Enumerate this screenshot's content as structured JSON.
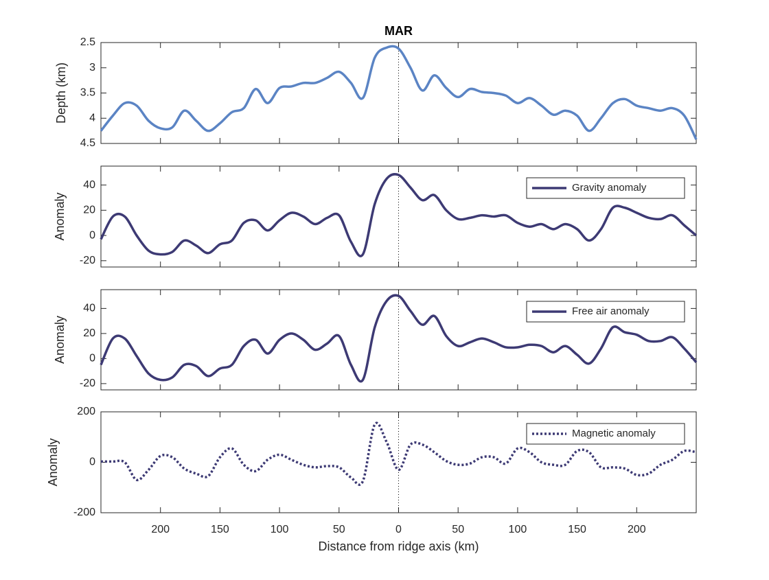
{
  "chart_data": [
    {
      "type": "line",
      "title": "MAR",
      "ylabel": "Depth (km)",
      "y_reversed": true,
      "vline": 0,
      "xlim": [
        -250,
        250
      ],
      "ylim": [
        2.5,
        4.5
      ],
      "yticks": [
        2.5,
        3,
        3.5,
        4,
        4.5
      ],
      "x": [
        -250,
        -240,
        -230,
        -220,
        -210,
        -200,
        -190,
        -180,
        -170,
        -160,
        -150,
        -140,
        -130,
        -120,
        -110,
        -100,
        -90,
        -80,
        -70,
        -60,
        -50,
        -40,
        -30,
        -20,
        -10,
        0,
        10,
        20,
        30,
        40,
        50,
        60,
        70,
        80,
        90,
        100,
        110,
        120,
        130,
        140,
        150,
        160,
        170,
        180,
        190,
        200,
        210,
        220,
        230,
        240,
        250
      ],
      "series": [
        {
          "name": "Depth",
          "color": "#5b84c4",
          "style": "solid",
          "values": [
            4.25,
            3.95,
            3.7,
            3.75,
            4.05,
            4.2,
            4.18,
            3.85,
            4.05,
            4.25,
            4.1,
            3.88,
            3.8,
            3.42,
            3.7,
            3.4,
            3.37,
            3.3,
            3.3,
            3.2,
            3.08,
            3.3,
            3.6,
            2.8,
            2.6,
            2.62,
            3.0,
            3.45,
            3.15,
            3.4,
            3.58,
            3.42,
            3.48,
            3.5,
            3.55,
            3.7,
            3.6,
            3.75,
            3.93,
            3.85,
            3.95,
            4.25,
            4.0,
            3.7,
            3.62,
            3.75,
            3.8,
            3.85,
            3.8,
            3.95,
            4.42
          ]
        }
      ]
    },
    {
      "type": "line",
      "ylabel": "Anomaly",
      "legend": "northeast",
      "vline": 0,
      "xlim": [
        -250,
        250
      ],
      "ylim": [
        -25,
        55
      ],
      "yticks": [
        -20,
        0,
        20,
        40
      ],
      "x": [
        -250,
        -240,
        -230,
        -220,
        -210,
        -200,
        -190,
        -180,
        -170,
        -160,
        -150,
        -140,
        -130,
        -120,
        -110,
        -100,
        -90,
        -80,
        -70,
        -60,
        -50,
        -40,
        -30,
        -20,
        -10,
        0,
        10,
        20,
        30,
        40,
        50,
        60,
        70,
        80,
        90,
        100,
        110,
        120,
        130,
        140,
        150,
        160,
        170,
        180,
        190,
        200,
        210,
        220,
        230,
        240,
        250
      ],
      "series": [
        {
          "name": "Gravity anomaly",
          "color": "#3d3a74",
          "style": "solid",
          "values": [
            -3,
            15,
            15,
            0,
            -12,
            -15,
            -13,
            -4,
            -8,
            -14,
            -7,
            -4,
            10,
            12,
            4,
            12,
            18,
            15,
            9,
            14,
            16,
            -5,
            -15,
            25,
            45,
            48,
            38,
            28,
            32,
            20,
            13,
            14,
            16,
            15,
            16,
            10,
            7,
            9,
            5,
            9,
            5,
            -4,
            5,
            22,
            22,
            18,
            14,
            13,
            16,
            8,
            0
          ]
        }
      ]
    },
    {
      "type": "line",
      "ylabel": "Anomaly",
      "legend": "northeast",
      "vline": 0,
      "xlim": [
        -250,
        250
      ],
      "ylim": [
        -25,
        55
      ],
      "yticks": [
        -20,
        0,
        20,
        40
      ],
      "x": [
        -250,
        -240,
        -230,
        -220,
        -210,
        -200,
        -190,
        -180,
        -170,
        -160,
        -150,
        -140,
        -130,
        -120,
        -110,
        -100,
        -90,
        -80,
        -70,
        -60,
        -50,
        -40,
        -30,
        -20,
        -10,
        0,
        10,
        20,
        30,
        40,
        50,
        60,
        70,
        80,
        90,
        100,
        110,
        120,
        130,
        140,
        150,
        160,
        170,
        180,
        190,
        200,
        210,
        220,
        230,
        240,
        250
      ],
      "series": [
        {
          "name": "Free air anomaly",
          "color": "#3d3a74",
          "style": "solid",
          "values": [
            -5,
            16,
            16,
            2,
            -12,
            -17,
            -15,
            -5,
            -6,
            -14,
            -8,
            -5,
            10,
            15,
            4,
            15,
            20,
            15,
            7,
            12,
            18,
            -5,
            -17,
            25,
            46,
            50,
            38,
            27,
            34,
            18,
            10,
            13,
            16,
            13,
            9,
            9,
            11,
            10,
            5,
            10,
            3,
            -4,
            8,
            25,
            21,
            19,
            14,
            14,
            17,
            8,
            -3
          ]
        }
      ]
    },
    {
      "type": "line",
      "ylabel": "Anomaly",
      "xlabel": "Distance from ridge axis (km)",
      "legend": "northeast",
      "vline": 0,
      "xlim": [
        -250,
        250
      ],
      "ylim": [
        -200,
        200
      ],
      "yticks": [
        -200,
        0,
        200
      ],
      "xticks": [
        {
          "value": -200,
          "label": "200"
        },
        {
          "value": -150,
          "label": "150"
        },
        {
          "value": -100,
          "label": "100"
        },
        {
          "value": -50,
          "label": "50"
        },
        0,
        50,
        100,
        150,
        200
      ],
      "x": [
        -250,
        -240,
        -230,
        -220,
        -210,
        -200,
        -190,
        -180,
        -170,
        -160,
        -150,
        -140,
        -130,
        -120,
        -110,
        -100,
        -90,
        -80,
        -70,
        -60,
        -50,
        -40,
        -30,
        -20,
        -10,
        0,
        10,
        20,
        30,
        40,
        50,
        60,
        70,
        80,
        90,
        100,
        110,
        120,
        130,
        140,
        150,
        160,
        170,
        180,
        190,
        200,
        210,
        220,
        230,
        240,
        250
      ],
      "series": [
        {
          "name": "Magnetic anomaly",
          "color": "#3d3a74",
          "style": "dotted",
          "values": [
            3,
            3,
            0,
            -70,
            -30,
            25,
            20,
            -25,
            -45,
            -55,
            20,
            55,
            -10,
            -35,
            10,
            30,
            10,
            -10,
            -20,
            -15,
            -20,
            -60,
            -75,
            150,
            80,
            -30,
            70,
            70,
            40,
            5,
            -10,
            -5,
            20,
            20,
            -5,
            55,
            40,
            0,
            -10,
            -10,
            45,
            40,
            -20,
            -20,
            -25,
            -50,
            -45,
            -10,
            10,
            45,
            40
          ]
        }
      ]
    }
  ]
}
